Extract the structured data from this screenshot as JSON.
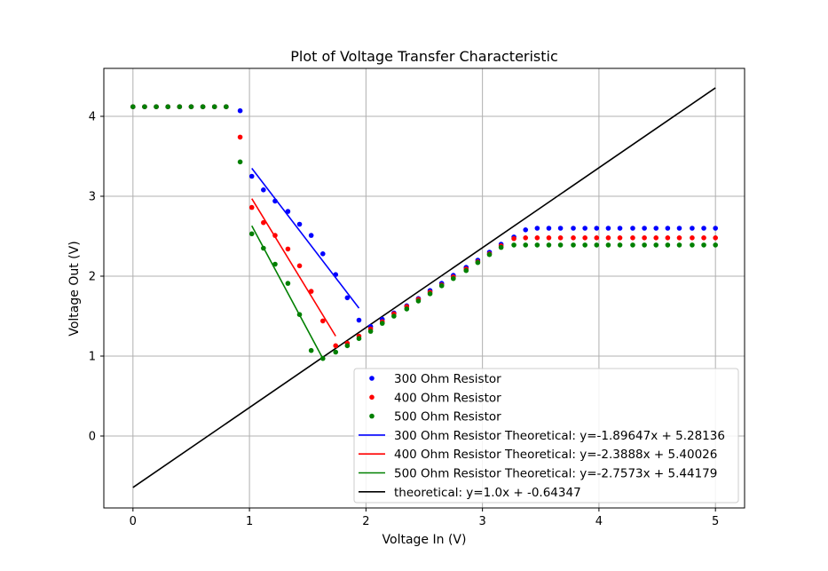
{
  "chart_data": {
    "type": "scatter",
    "title": "Plot of Voltage Transfer Characteristic",
    "xlabel": "Voltage In (V)",
    "ylabel": "Voltage Out (V)",
    "xlim": [
      -0.25,
      5.25
    ],
    "ylim": [
      -0.9,
      4.6
    ],
    "xticks": [
      0,
      1,
      2,
      3,
      4,
      5
    ],
    "yticks": [
      0,
      1,
      2,
      3,
      4
    ],
    "grid": true,
    "legend_position": "lower-right",
    "x": [
      0.0,
      0.1,
      0.2,
      0.3,
      0.4,
      0.5,
      0.6,
      0.7,
      0.8,
      0.92,
      1.02,
      1.12,
      1.22,
      1.33,
      1.43,
      1.53,
      1.63,
      1.74,
      1.84,
      1.94,
      2.04,
      2.14,
      2.24,
      2.35,
      2.45,
      2.55,
      2.65,
      2.75,
      2.86,
      2.96,
      3.06,
      3.16,
      3.27,
      3.37,
      3.47,
      3.57,
      3.67,
      3.78,
      3.88,
      3.98,
      4.08,
      4.18,
      4.29,
      4.39,
      4.49,
      4.59,
      4.69,
      4.8,
      4.9,
      5.0
    ],
    "series": [
      {
        "name": "300 Ohm Resistor",
        "color": "#0000ff",
        "y": [
          4.12,
          4.12,
          4.12,
          4.12,
          4.12,
          4.12,
          4.12,
          4.12,
          4.12,
          4.07,
          3.25,
          3.08,
          2.94,
          2.81,
          2.65,
          2.51,
          2.28,
          2.02,
          1.73,
          1.45,
          1.37,
          1.46,
          1.54,
          1.63,
          1.72,
          1.82,
          1.91,
          2.01,
          2.11,
          2.2,
          2.3,
          2.4,
          2.49,
          2.58,
          2.6,
          2.6,
          2.6,
          2.6,
          2.6,
          2.6,
          2.6,
          2.6,
          2.6,
          2.6,
          2.6,
          2.6,
          2.6,
          2.6,
          2.6,
          2.6
        ]
      },
      {
        "name": "400 Ohm Resistor",
        "color": "#ff0000",
        "y": [
          4.12,
          4.12,
          4.12,
          4.12,
          4.12,
          4.12,
          4.12,
          4.12,
          4.12,
          3.74,
          2.86,
          2.67,
          2.51,
          2.34,
          2.13,
          1.81,
          1.44,
          1.13,
          1.16,
          1.25,
          1.34,
          1.43,
          1.53,
          1.62,
          1.71,
          1.8,
          1.89,
          1.99,
          2.09,
          2.18,
          2.28,
          2.38,
          2.47,
          2.48,
          2.48,
          2.48,
          2.48,
          2.48,
          2.48,
          2.48,
          2.48,
          2.48,
          2.48,
          2.48,
          2.48,
          2.48,
          2.48,
          2.48,
          2.48,
          2.48
        ]
      },
      {
        "name": "500 Ohm Resistor",
        "color": "#008000",
        "y": [
          4.12,
          4.12,
          4.12,
          4.12,
          4.12,
          4.12,
          4.12,
          4.12,
          4.12,
          3.43,
          2.53,
          2.35,
          2.15,
          1.91,
          1.52,
          1.07,
          0.97,
          1.05,
          1.13,
          1.22,
          1.31,
          1.41,
          1.5,
          1.59,
          1.69,
          1.78,
          1.88,
          1.97,
          2.07,
          2.17,
          2.27,
          2.36,
          2.39,
          2.39,
          2.39,
          2.39,
          2.39,
          2.39,
          2.39,
          2.39,
          2.39,
          2.39,
          2.39,
          2.39,
          2.39,
          2.39,
          2.39,
          2.39,
          2.39,
          2.39
        ]
      }
    ],
    "lines": [
      {
        "name": "300 Ohm Resistor Theoretical: y=-1.89647x + 5.28136",
        "color": "#0000ff",
        "x": [
          1.02,
          1.94
        ],
        "y": [
          3.35,
          1.6
        ]
      },
      {
        "name": "400 Ohm Resistor Theoretical: y=-2.3888x + 5.40026",
        "color": "#ff0000",
        "x": [
          1.02,
          1.74
        ],
        "y": [
          2.97,
          1.25
        ]
      },
      {
        "name": "500 Ohm Resistor Theoretical: y=-2.7573x + 5.44179",
        "color": "#008000",
        "x": [
          1.02,
          1.63
        ],
        "y": [
          2.63,
          0.97
        ]
      },
      {
        "name": "theoretical: y=1.0x + -0.64347",
        "color": "#000000",
        "x": [
          0.0,
          5.0
        ],
        "y": [
          -0.64347,
          4.35653
        ]
      }
    ]
  }
}
